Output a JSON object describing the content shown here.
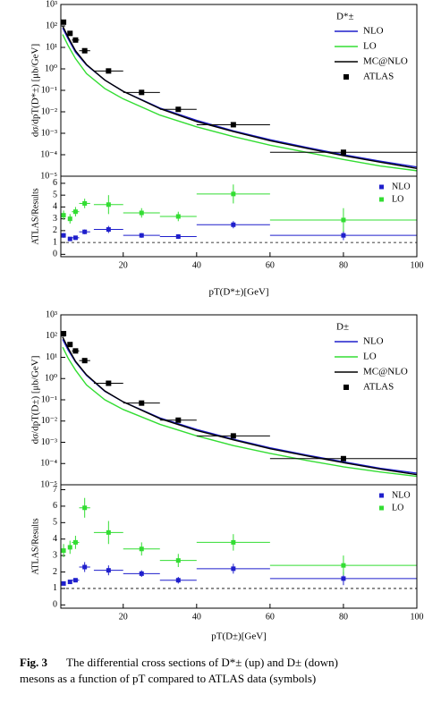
{
  "chart_data": [
    {
      "type": "line",
      "ylabel": "dσ/dpT(D*±) [μb/GeV]",
      "legend_title": "D*±",
      "log_y": true,
      "xlim": [
        3,
        100
      ],
      "ylim": [
        1e-05,
        1000
      ],
      "yticks": [
        {
          "value": 1000,
          "label": "10³"
        },
        {
          "value": 100,
          "label": "10²"
        },
        {
          "value": 10,
          "label": "10¹"
        },
        {
          "value": 1,
          "label": "10⁰"
        },
        {
          "value": 0.1,
          "label": "10⁻¹"
        },
        {
          "value": 0.01,
          "label": "10⁻²"
        },
        {
          "value": 0.001,
          "label": "10⁻³"
        },
        {
          "value": 0.0001,
          "label": "10⁻⁴"
        },
        {
          "value": 1e-05,
          "label": "10⁻⁵"
        }
      ],
      "series": [
        {
          "name": "NLO",
          "type": "line",
          "color": "#1f1fcc",
          "x": [
            3.5,
            5,
            7,
            10,
            15,
            20,
            30,
            40,
            50,
            60,
            70,
            80,
            90,
            100
          ],
          "values": [
            80,
            25,
            6,
            1.5,
            0.3,
            0.09,
            0.015,
            0.004,
            0.0013,
            0.0005,
            0.00022,
            0.0001,
            5e-05,
            2.7e-05
          ]
        },
        {
          "name": "LO",
          "type": "line",
          "color": "#33dd33",
          "x": [
            3.5,
            5,
            7,
            10,
            15,
            20,
            30,
            40,
            50,
            60,
            70,
            80,
            90,
            100
          ],
          "values": [
            40,
            12,
            3,
            0.6,
            0.12,
            0.04,
            0.007,
            0.002,
            0.0007,
            0.00028,
            0.00013,
            6e-05,
            3e-05,
            1.8e-05
          ]
        },
        {
          "name": "MC@NLO",
          "type": "line",
          "color": "#000000",
          "x": [
            3.5,
            5,
            7,
            10,
            15,
            20,
            30,
            40,
            50,
            60,
            70,
            80,
            90,
            100
          ],
          "values": [
            100,
            30,
            7,
            1.6,
            0.3,
            0.09,
            0.014,
            0.0035,
            0.0012,
            0.00045,
            0.0002,
            9e-05,
            4.5e-05,
            2.3e-05
          ]
        },
        {
          "name": "ATLAS",
          "type": "points",
          "color": "#000000",
          "x": [
            3.75,
            5.5,
            7,
            9.5,
            16,
            25,
            35,
            50,
            80
          ],
          "xerr": [
            0.25,
            0.5,
            1,
            1.5,
            4,
            5,
            5,
            10,
            20
          ],
          "values": [
            150,
            45,
            22,
            7,
            0.8,
            0.08,
            0.013,
            0.0025,
            0.00013
          ]
        }
      ]
    },
    {
      "type": "scatter",
      "ylabel": "ATLAS/Results",
      "xlabel": "pT(D*±)[GeV]",
      "xlim": [
        3,
        100
      ],
      "ylim": [
        -0.2,
        6.6
      ],
      "xticks": [
        20,
        40,
        60,
        80,
        100
      ],
      "yticks": [
        0,
        1,
        2,
        3,
        4,
        5,
        6
      ],
      "reference_line": 1,
      "x": [
        3.75,
        5.5,
        7,
        9.5,
        16,
        25,
        35,
        50,
        80
      ],
      "xerr": [
        0.25,
        0.5,
        1,
        1.5,
        4,
        5,
        5,
        10,
        20
      ],
      "series": [
        {
          "name": "NLO",
          "color": "#1f1fcc",
          "values": [
            1.6,
            1.3,
            1.4,
            1.9,
            2.1,
            1.6,
            1.5,
            2.5,
            1.6
          ],
          "yerr": [
            0.2,
            0.1,
            0.1,
            0.2,
            0.3,
            0.2,
            0.2,
            0.3,
            0.4
          ]
        },
        {
          "name": "LO",
          "color": "#33dd33",
          "values": [
            3.3,
            3.0,
            3.6,
            4.3,
            4.2,
            3.5,
            3.2,
            5.1,
            2.9
          ],
          "yerr": [
            0.4,
            0.4,
            0.4,
            0.4,
            0.8,
            0.4,
            0.4,
            0.8,
            1.0
          ]
        }
      ]
    },
    {
      "type": "line",
      "ylabel": "dσ/dpT(D±) [μb/GeV]",
      "legend_title": "D±",
      "log_y": true,
      "xlim": [
        3,
        100
      ],
      "ylim": [
        1e-05,
        1000
      ],
      "yticks": [
        {
          "value": 1000,
          "label": "10³"
        },
        {
          "value": 100,
          "label": "10²"
        },
        {
          "value": 10,
          "label": "10¹"
        },
        {
          "value": 1,
          "label": "10⁰"
        },
        {
          "value": 0.1,
          "label": "10⁻¹"
        },
        {
          "value": 0.01,
          "label": "10⁻²"
        },
        {
          "value": 0.001,
          "label": "10⁻³"
        },
        {
          "value": 0.0001,
          "label": "10⁻⁴"
        },
        {
          "value": 1e-05,
          "label": "10⁻⁵"
        }
      ],
      "series": [
        {
          "name": "NLO",
          "type": "line",
          "color": "#1f1fcc",
          "x": [
            3.5,
            5,
            7,
            10,
            15,
            20,
            30,
            40,
            50,
            60,
            70,
            80,
            90,
            100
          ],
          "values": [
            70,
            22,
            6,
            1.4,
            0.25,
            0.08,
            0.014,
            0.004,
            0.0014,
            0.00055,
            0.00025,
            0.00012,
            6e-05,
            3.5e-05
          ]
        },
        {
          "name": "LO",
          "type": "line",
          "color": "#33dd33",
          "x": [
            3.5,
            5,
            7,
            10,
            15,
            20,
            30,
            40,
            50,
            60,
            70,
            80,
            90,
            100
          ],
          "values": [
            30,
            9,
            2.5,
            0.5,
            0.1,
            0.035,
            0.007,
            0.002,
            0.0007,
            0.0003,
            0.00014,
            7e-05,
            4e-05,
            2.5e-05
          ]
        },
        {
          "name": "MC@NLO",
          "type": "line",
          "color": "#000000",
          "x": [
            3.5,
            5,
            7,
            10,
            15,
            20,
            30,
            40,
            50,
            60,
            70,
            80,
            90,
            100
          ],
          "values": [
            90,
            27,
            6.5,
            1.5,
            0.26,
            0.08,
            0.013,
            0.0036,
            0.0013,
            0.0005,
            0.00023,
            0.00011,
            5.5e-05,
            3e-05
          ]
        },
        {
          "name": "ATLAS",
          "type": "points",
          "color": "#000000",
          "x": [
            3.75,
            5.5,
            7,
            9.5,
            16,
            25,
            35,
            50,
            80
          ],
          "xerr": [
            0.25,
            0.5,
            1,
            1.5,
            4,
            5,
            5,
            10,
            20
          ],
          "values": [
            130,
            40,
            20,
            7,
            0.6,
            0.07,
            0.011,
            0.002,
            0.00017
          ]
        }
      ]
    },
    {
      "type": "scatter",
      "ylabel": "ATLAS/Results",
      "xlabel": "pT(D±)[GeV]",
      "xlim": [
        3,
        100
      ],
      "ylim": [
        -0.2,
        7.3
      ],
      "xticks": [
        20,
        40,
        60,
        80,
        100
      ],
      "yticks": [
        0,
        1,
        2,
        3,
        4,
        5,
        6,
        7
      ],
      "reference_line": 1,
      "x": [
        3.75,
        5.5,
        7,
        9.5,
        16,
        25,
        35,
        50,
        80
      ],
      "xerr": [
        0.25,
        0.5,
        1,
        1.5,
        4,
        5,
        5,
        10,
        20
      ],
      "series": [
        {
          "name": "NLO",
          "color": "#1f1fcc",
          "values": [
            1.3,
            1.4,
            1.5,
            2.3,
            2.1,
            1.9,
            1.5,
            2.2,
            1.6
          ],
          "yerr": [
            0.1,
            0.1,
            0.1,
            0.3,
            0.3,
            0.2,
            0.2,
            0.3,
            0.4
          ]
        },
        {
          "name": "LO",
          "color": "#33dd33",
          "values": [
            3.3,
            3.5,
            3.8,
            5.9,
            4.4,
            3.4,
            2.7,
            3.8,
            2.4
          ],
          "yerr": [
            0.4,
            0.4,
            0.4,
            0.6,
            0.7,
            0.4,
            0.4,
            0.5,
            0.6
          ]
        }
      ]
    }
  ],
  "caption": {
    "label": "Fig. 3",
    "lines": [
      "The differential cross sections of D*± (up) and D± (down)",
      "mesons as a function of pT compared to ATLAS data (symbols)"
    ]
  }
}
